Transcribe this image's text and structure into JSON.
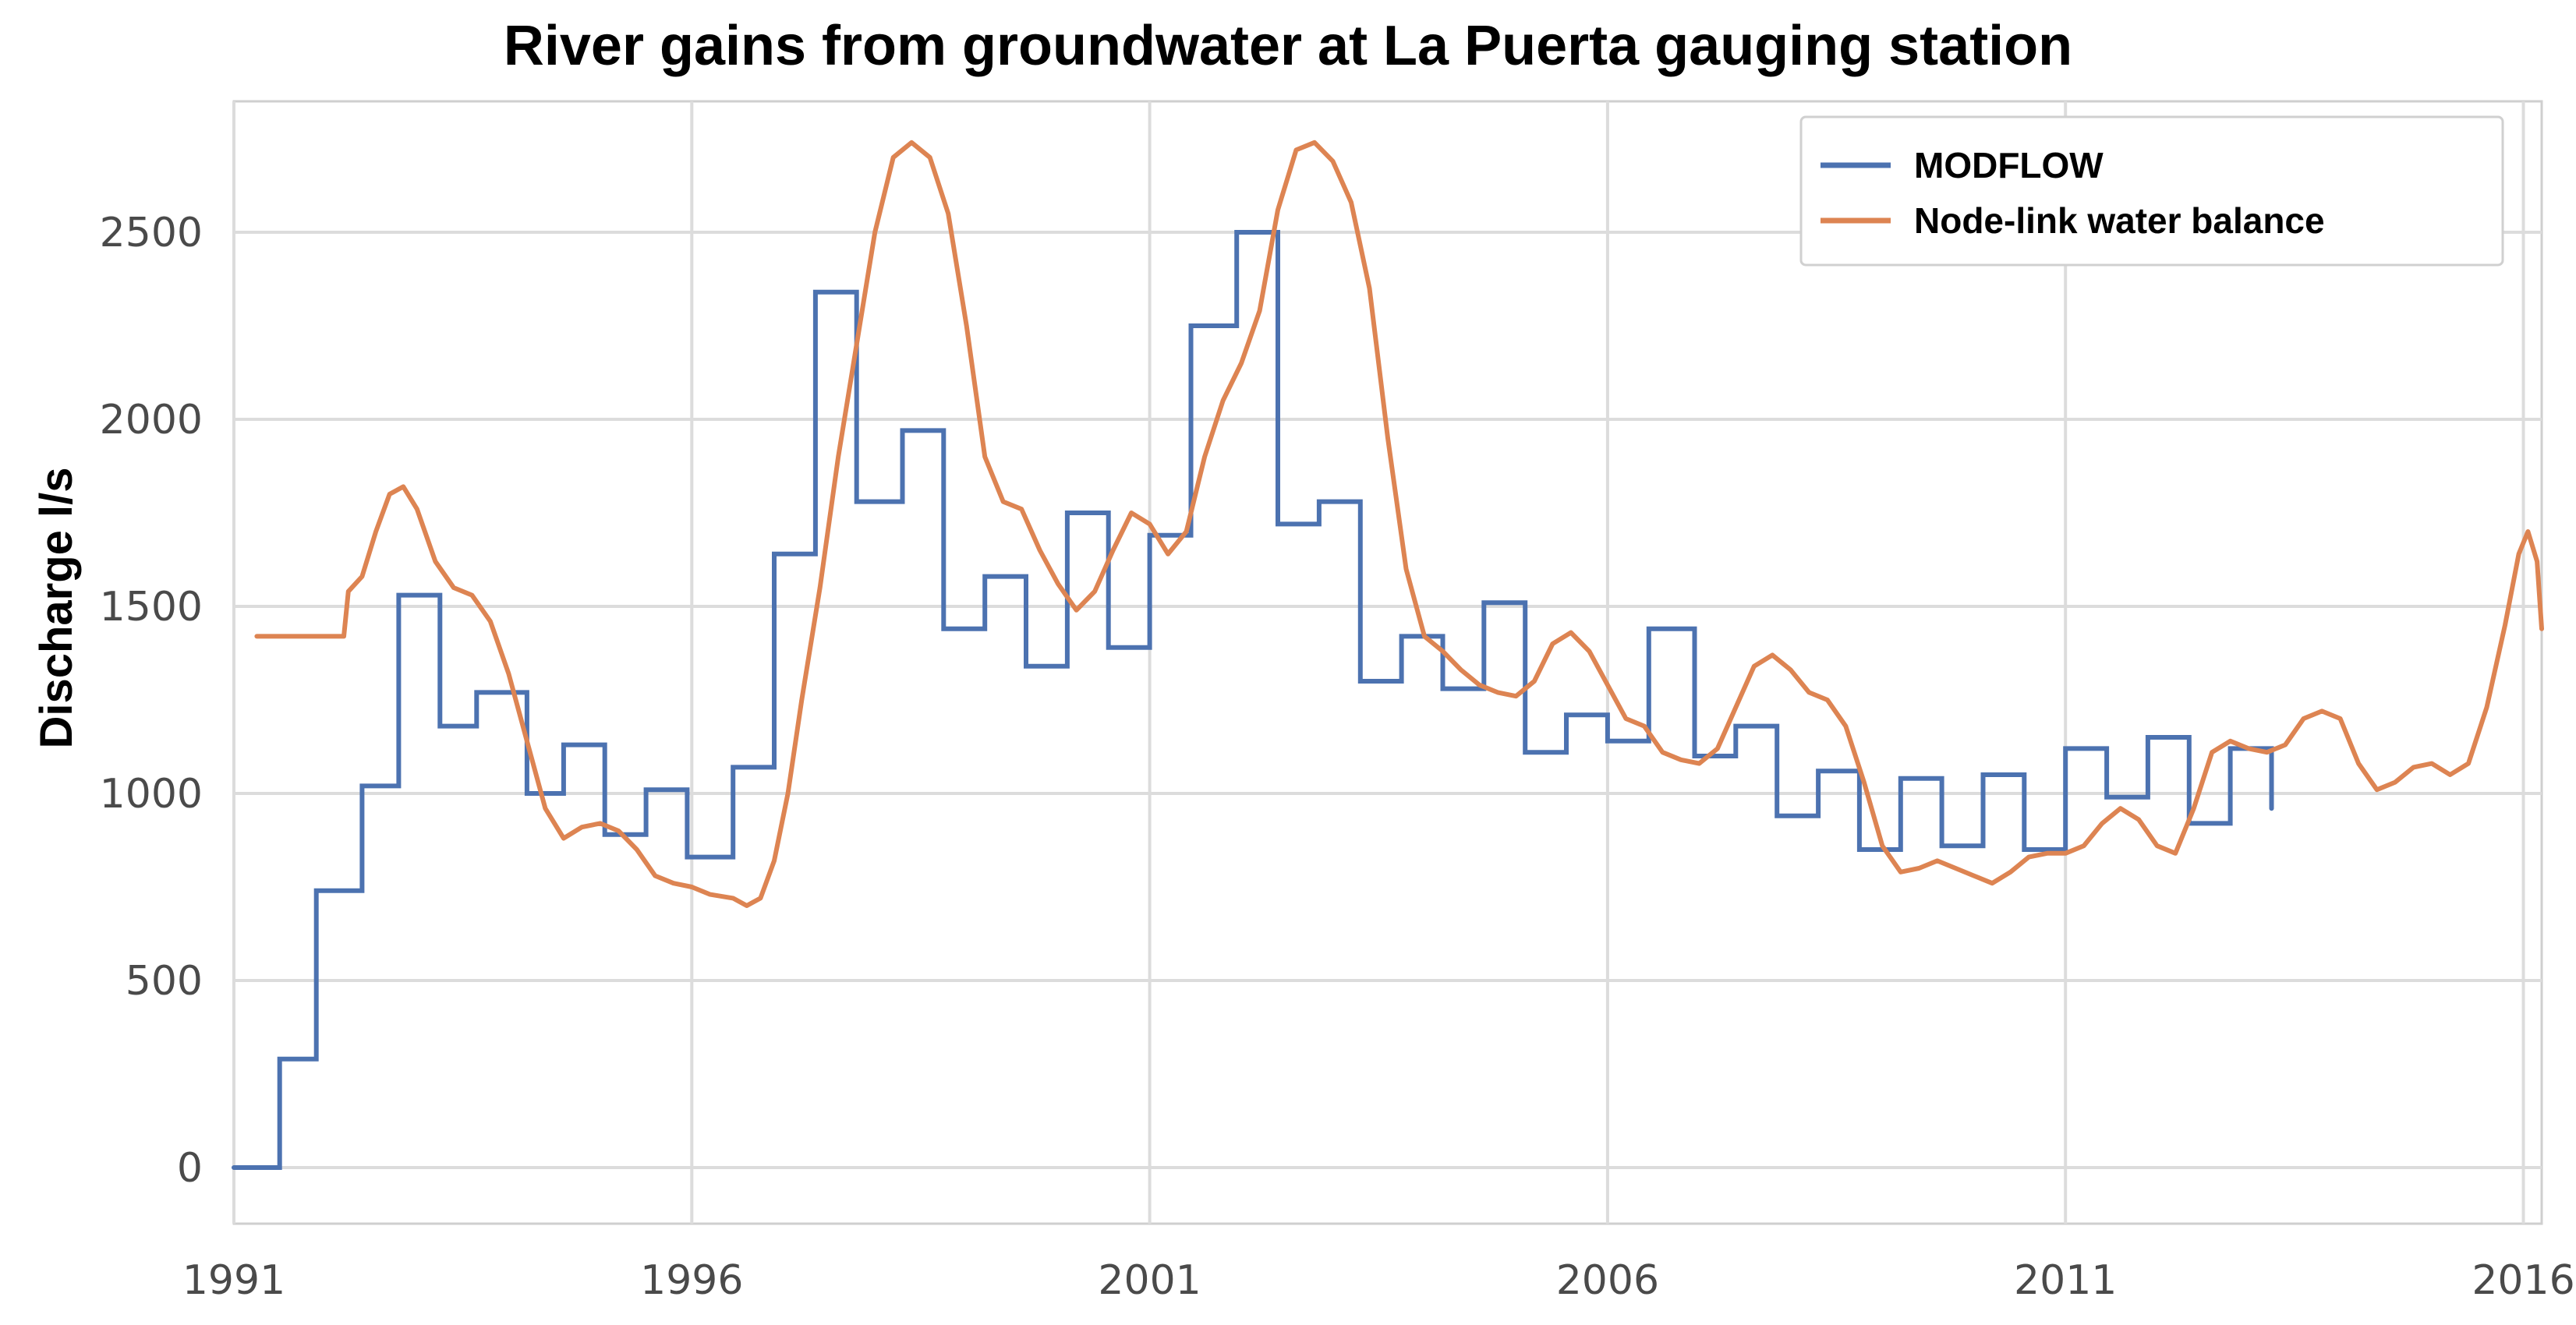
{
  "chart_data": {
    "type": "line",
    "title": "River gains from groundwater at La Puerta gauging station",
    "xlabel": "",
    "ylabel": "Discharge l/s",
    "xlim": [
      1991,
      2016.2
    ],
    "ylim": [
      -150,
      2850
    ],
    "x_ticks": [
      1991,
      1996,
      2001,
      2006,
      2011,
      2016
    ],
    "x_tick_labels": [
      "1991",
      "1996",
      "2001",
      "2006",
      "2011",
      "2016"
    ],
    "y_ticks": [
      0,
      500,
      1000,
      1500,
      2000,
      2500
    ],
    "y_tick_labels": [
      "0",
      "500",
      "1000",
      "1500",
      "2000",
      "2500"
    ],
    "grid": true,
    "legend_position": "top-right",
    "series": [
      {
        "name": "MODFLOW",
        "color": "#4c72b0",
        "style": "step",
        "points": [
          [
            1991.0,
            0
          ],
          [
            1991.5,
            0
          ],
          [
            1991.5,
            290
          ],
          [
            1991.9,
            290
          ],
          [
            1991.9,
            740
          ],
          [
            1992.4,
            740
          ],
          [
            1992.4,
            1020
          ],
          [
            1992.8,
            1020
          ],
          [
            1992.8,
            1530
          ],
          [
            1993.25,
            1530
          ],
          [
            1993.25,
            1180
          ],
          [
            1993.65,
            1180
          ],
          [
            1993.65,
            1270
          ],
          [
            1994.2,
            1270
          ],
          [
            1994.2,
            1000
          ],
          [
            1994.6,
            1000
          ],
          [
            1994.6,
            1130
          ],
          [
            1995.05,
            1130
          ],
          [
            1995.05,
            890
          ],
          [
            1995.5,
            890
          ],
          [
            1995.5,
            1010
          ],
          [
            1995.95,
            1010
          ],
          [
            1995.95,
            830
          ],
          [
            1996.45,
            830
          ],
          [
            1996.45,
            1070
          ],
          [
            1996.9,
            1070
          ],
          [
            1996.9,
            1640
          ],
          [
            1997.35,
            1640
          ],
          [
            1997.35,
            2340
          ],
          [
            1997.8,
            2340
          ],
          [
            1997.8,
            1780
          ],
          [
            1998.3,
            1780
          ],
          [
            1998.3,
            1970
          ],
          [
            1998.75,
            1970
          ],
          [
            1998.75,
            1440
          ],
          [
            1999.2,
            1440
          ],
          [
            1999.2,
            1580
          ],
          [
            1999.65,
            1580
          ],
          [
            1999.65,
            1340
          ],
          [
            2000.1,
            1340
          ],
          [
            2000.1,
            1750
          ],
          [
            2000.55,
            1750
          ],
          [
            2000.55,
            1390
          ],
          [
            2001.0,
            1390
          ],
          [
            2001.0,
            1690
          ],
          [
            2001.45,
            1690
          ],
          [
            2001.45,
            2250
          ],
          [
            2001.95,
            2250
          ],
          [
            2001.95,
            2500
          ],
          [
            2002.4,
            2500
          ],
          [
            2002.4,
            1720
          ],
          [
            2002.85,
            1720
          ],
          [
            2002.85,
            1780
          ],
          [
            2003.3,
            1780
          ],
          [
            2003.3,
            1300
          ],
          [
            2003.75,
            1300
          ],
          [
            2003.75,
            1420
          ],
          [
            2004.2,
            1420
          ],
          [
            2004.2,
            1280
          ],
          [
            2004.65,
            1280
          ],
          [
            2004.65,
            1510
          ],
          [
            2005.1,
            1510
          ],
          [
            2005.1,
            1110
          ],
          [
            2005.55,
            1110
          ],
          [
            2005.55,
            1210
          ],
          [
            2006.0,
            1210
          ],
          [
            2006.0,
            1140
          ],
          [
            2006.45,
            1140
          ],
          [
            2006.45,
            1440
          ],
          [
            2006.95,
            1440
          ],
          [
            2006.95,
            1100
          ],
          [
            2007.4,
            1100
          ],
          [
            2007.4,
            1180
          ],
          [
            2007.85,
            1180
          ],
          [
            2007.85,
            940
          ],
          [
            2008.3,
            940
          ],
          [
            2008.3,
            1060
          ],
          [
            2008.75,
            1060
          ],
          [
            2008.75,
            850
          ],
          [
            2009.2,
            850
          ],
          [
            2009.2,
            1040
          ],
          [
            2009.65,
            1040
          ],
          [
            2009.65,
            860
          ],
          [
            2010.1,
            860
          ],
          [
            2010.1,
            1050
          ],
          [
            2010.55,
            1050
          ],
          [
            2010.55,
            850
          ],
          [
            2011.0,
            850
          ],
          [
            2011.0,
            1120
          ],
          [
            2011.45,
            1120
          ],
          [
            2011.45,
            990
          ],
          [
            2011.9,
            990
          ],
          [
            2011.9,
            1150
          ],
          [
            2012.35,
            1150
          ],
          [
            2012.35,
            920
          ],
          [
            2012.8,
            920
          ],
          [
            2012.8,
            1120
          ],
          [
            2013.25,
            1120
          ],
          [
            2013.25,
            960
          ]
        ]
      },
      {
        "name": "Node-link water balance",
        "color": "#dd8452",
        "style": "line",
        "points": [
          [
            1991.25,
            1420
          ],
          [
            1991.5,
            1420
          ],
          [
            1991.75,
            1420
          ],
          [
            1992.0,
            1420
          ],
          [
            1992.2,
            1420
          ],
          [
            1992.25,
            1540
          ],
          [
            1992.4,
            1580
          ],
          [
            1992.55,
            1700
          ],
          [
            1992.7,
            1800
          ],
          [
            1992.85,
            1820
          ],
          [
            1993.0,
            1760
          ],
          [
            1993.2,
            1620
          ],
          [
            1993.4,
            1550
          ],
          [
            1993.6,
            1530
          ],
          [
            1993.8,
            1460
          ],
          [
            1994.0,
            1320
          ],
          [
            1994.2,
            1140
          ],
          [
            1994.4,
            960
          ],
          [
            1994.6,
            880
          ],
          [
            1994.8,
            910
          ],
          [
            1995.0,
            920
          ],
          [
            1995.2,
            900
          ],
          [
            1995.4,
            850
          ],
          [
            1995.6,
            780
          ],
          [
            1995.8,
            760
          ],
          [
            1996.0,
            750
          ],
          [
            1996.2,
            730
          ],
          [
            1996.45,
            720
          ],
          [
            1996.6,
            700
          ],
          [
            1996.75,
            720
          ],
          [
            1996.9,
            820
          ],
          [
            1997.05,
            1000
          ],
          [
            1997.2,
            1250
          ],
          [
            1997.4,
            1550
          ],
          [
            1997.6,
            1900
          ],
          [
            1997.8,
            2200
          ],
          [
            1998.0,
            2500
          ],
          [
            1998.2,
            2700
          ],
          [
            1998.4,
            2740
          ],
          [
            1998.6,
            2700
          ],
          [
            1998.8,
            2550
          ],
          [
            1999.0,
            2250
          ],
          [
            1999.2,
            1900
          ],
          [
            1999.4,
            1780
          ],
          [
            1999.6,
            1760
          ],
          [
            1999.8,
            1650
          ],
          [
            2000.0,
            1560
          ],
          [
            2000.2,
            1490
          ],
          [
            2000.4,
            1540
          ],
          [
            2000.6,
            1650
          ],
          [
            2000.8,
            1750
          ],
          [
            2001.0,
            1720
          ],
          [
            2001.2,
            1640
          ],
          [
            2001.4,
            1700
          ],
          [
            2001.6,
            1900
          ],
          [
            2001.8,
            2050
          ],
          [
            2002.0,
            2150
          ],
          [
            2002.2,
            2290
          ],
          [
            2002.4,
            2560
          ],
          [
            2002.6,
            2720
          ],
          [
            2002.8,
            2740
          ],
          [
            2003.0,
            2690
          ],
          [
            2003.2,
            2580
          ],
          [
            2003.4,
            2350
          ],
          [
            2003.6,
            1950
          ],
          [
            2003.8,
            1600
          ],
          [
            2004.0,
            1420
          ],
          [
            2004.2,
            1380
          ],
          [
            2004.4,
            1330
          ],
          [
            2004.6,
            1290
          ],
          [
            2004.8,
            1270
          ],
          [
            2005.0,
            1260
          ],
          [
            2005.2,
            1300
          ],
          [
            2005.4,
            1400
          ],
          [
            2005.6,
            1430
          ],
          [
            2005.8,
            1380
          ],
          [
            2006.0,
            1290
          ],
          [
            2006.2,
            1200
          ],
          [
            2006.4,
            1180
          ],
          [
            2006.6,
            1110
          ],
          [
            2006.8,
            1090
          ],
          [
            2007.0,
            1080
          ],
          [
            2007.2,
            1120
          ],
          [
            2007.4,
            1230
          ],
          [
            2007.6,
            1340
          ],
          [
            2007.8,
            1370
          ],
          [
            2008.0,
            1330
          ],
          [
            2008.2,
            1270
          ],
          [
            2008.4,
            1250
          ],
          [
            2008.6,
            1180
          ],
          [
            2008.8,
            1030
          ],
          [
            2009.0,
            860
          ],
          [
            2009.2,
            790
          ],
          [
            2009.4,
            800
          ],
          [
            2009.6,
            820
          ],
          [
            2009.8,
            800
          ],
          [
            2010.0,
            780
          ],
          [
            2010.2,
            760
          ],
          [
            2010.4,
            790
          ],
          [
            2010.6,
            830
          ],
          [
            2010.8,
            840
          ],
          [
            2011.0,
            840
          ],
          [
            2011.2,
            860
          ],
          [
            2011.4,
            920
          ],
          [
            2011.6,
            960
          ],
          [
            2011.8,
            930
          ],
          [
            2012.0,
            860
          ],
          [
            2012.2,
            840
          ],
          [
            2012.4,
            960
          ],
          [
            2012.6,
            1110
          ],
          [
            2012.8,
            1140
          ],
          [
            2013.0,
            1120
          ],
          [
            2013.2,
            1110
          ],
          [
            2013.4,
            1130
          ],
          [
            2013.6,
            1200
          ],
          [
            2013.8,
            1220
          ],
          [
            2014.0,
            1200
          ],
          [
            2014.2,
            1080
          ],
          [
            2014.4,
            1010
          ],
          [
            2014.6,
            1030
          ],
          [
            2014.8,
            1070
          ],
          [
            2015.0,
            1080
          ],
          [
            2015.2,
            1050
          ],
          [
            2015.4,
            1080
          ],
          [
            2015.6,
            1230
          ],
          [
            2015.8,
            1450
          ],
          [
            2015.95,
            1640
          ],
          [
            2016.05,
            1700
          ],
          [
            2016.15,
            1620
          ],
          [
            2016.2,
            1440
          ]
        ]
      }
    ]
  }
}
